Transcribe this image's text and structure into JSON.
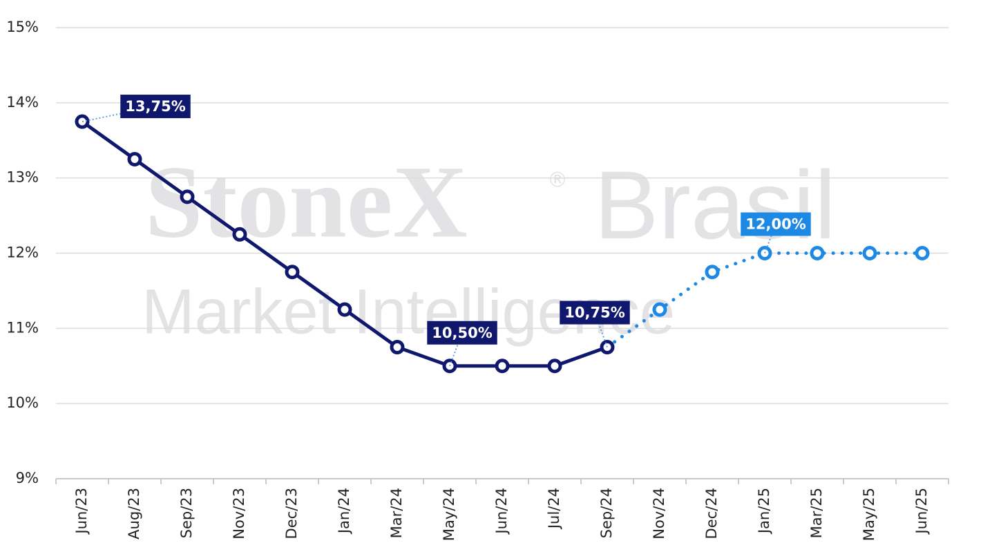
{
  "chart_data": {
    "type": "line",
    "watermark": [
      "StoneX",
      "®",
      "Brasil",
      "Market Intelligence"
    ],
    "categories": [
      "Jun/23",
      "Aug/23",
      "Sep/23",
      "Nov/23",
      "Dec/23",
      "Jan/24",
      "Mar/24",
      "May/24",
      "Jun/24",
      "Jul/24",
      "Sep/24",
      "Nov/24",
      "Dec/24",
      "Jan/25",
      "Mar/25",
      "May/25",
      "Jun/25"
    ],
    "series": [
      {
        "color": "#10186e",
        "dashed": false,
        "values": [
          13.75,
          13.25,
          12.75,
          12.25,
          11.75,
          11.25,
          10.75,
          10.5,
          10.5,
          10.5,
          10.75,
          null,
          null,
          null,
          null,
          null,
          null
        ],
        "value_labels": [
          "13,75%",
          null,
          null,
          null,
          null,
          null,
          null,
          "10,50%",
          null,
          null,
          "10,75%",
          null,
          null,
          null,
          null,
          null,
          null
        ]
      },
      {
        "color": "#1e88e5",
        "dashed": true,
        "values": [
          null,
          null,
          null,
          null,
          null,
          null,
          null,
          null,
          null,
          null,
          10.75,
          11.25,
          11.75,
          12,
          12,
          12,
          12
        ],
        "value_labels": [
          null,
          null,
          null,
          null,
          null,
          null,
          null,
          null,
          null,
          null,
          null,
          null,
          null,
          "12,00%",
          null,
          null,
          null
        ]
      }
    ],
    "ylim": [
      9,
      15
    ],
    "yticks": [
      {
        "value": 9,
        "label": "9%"
      },
      {
        "value": 10,
        "label": "10%"
      },
      {
        "value": 11,
        "label": "11%"
      },
      {
        "value": 12,
        "label": "12%"
      },
      {
        "value": 13,
        "label": "13%"
      },
      {
        "value": 14,
        "label": "14%"
      },
      {
        "value": 15,
        "label": "15%"
      }
    ],
    "grid": true
  }
}
